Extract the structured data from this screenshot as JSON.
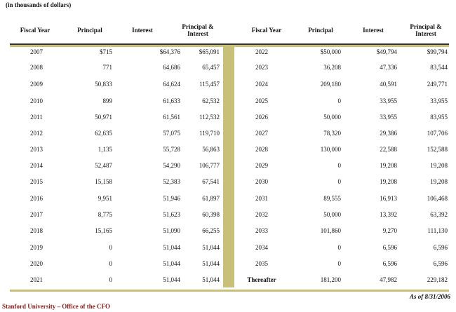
{
  "units_note": "(in thousands of dollars)",
  "headers": [
    "Fiscal Year",
    "Principal",
    "Interest",
    "Principal &\nInterest"
  ],
  "left_rows": [
    [
      "2007",
      "$715",
      "$64,376",
      "$65,091"
    ],
    [
      "2008",
      "771",
      "64,686",
      "65,457"
    ],
    [
      "2009",
      "50,833",
      "64,624",
      "115,457"
    ],
    [
      "2010",
      "899",
      "61,633",
      "62,532"
    ],
    [
      "2011",
      "50,971",
      "61,561",
      "112,532"
    ],
    [
      "2012",
      "62,635",
      "57,075",
      "119,710"
    ],
    [
      "2013",
      "1,135",
      "55,728",
      "56,863"
    ],
    [
      "2014",
      "52,487",
      "54,290",
      "106,777"
    ],
    [
      "2015",
      "15,158",
      "52,383",
      "67,541"
    ],
    [
      "2016",
      "9,951",
      "51,946",
      "61,897"
    ],
    [
      "2017",
      "8,775",
      "51,623",
      "60,398"
    ],
    [
      "2018",
      "15,165",
      "51,090",
      "66,255"
    ],
    [
      "2019",
      "0",
      "51,044",
      "51,044"
    ],
    [
      "2020",
      "0",
      "51,044",
      "51,044"
    ],
    [
      "2021",
      "0",
      "51,044",
      "51,044"
    ]
  ],
  "right_rows": [
    [
      "2022",
      "$50,000",
      "$49,794",
      "$99,794"
    ],
    [
      "2023",
      "36,208",
      "47,336",
      "83,544"
    ],
    [
      "2024",
      "209,180",
      "40,591",
      "249,771"
    ],
    [
      "2025",
      "0",
      "33,955",
      "33,955"
    ],
    [
      "2026",
      "50,000",
      "33,955",
      "83,955"
    ],
    [
      "2027",
      "78,320",
      "29,386",
      "107,706"
    ],
    [
      "2028",
      "130,000",
      "22,588",
      "152,588"
    ],
    [
      "2029",
      "0",
      "19,208",
      "19,208"
    ],
    [
      "2030",
      "0",
      "19,208",
      "19,208"
    ],
    [
      "2031",
      "89,555",
      "16,913",
      "106,468"
    ],
    [
      "2032",
      "50,000",
      "13,392",
      "63,392"
    ],
    [
      "2033",
      "101,860",
      "9,270",
      "111,130"
    ],
    [
      "2034",
      "0",
      "6,596",
      "6,596"
    ],
    [
      "2035",
      "0",
      "6,596",
      "6,596"
    ],
    [
      "Thereafter",
      "181,200",
      "47,982",
      "229,182"
    ]
  ],
  "footer_org": "Stanford University – Office of the CFO",
  "as_of": "As of 8/31/2006"
}
